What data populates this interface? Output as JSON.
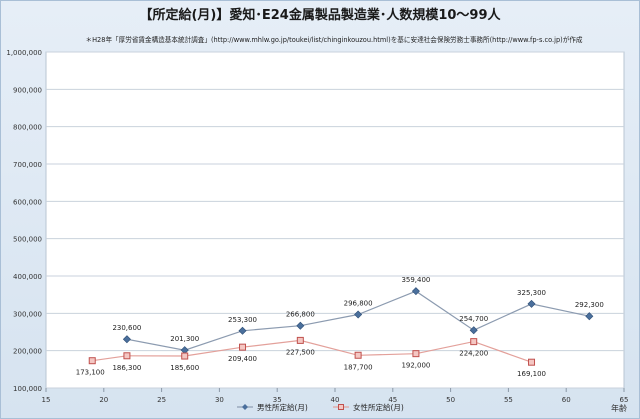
{
  "chart_data": {
    "type": "line",
    "title": "【所定給(月)】愛知･E24金属製品製造業･人数規模10～99人",
    "subtitle": "＊H28年「厚労省賃金構造基本統計調査」(http://www.mhlw.go.jp/toukei/list/chinginkouzou.html)を基に安達社会保険労務士事務所(http://www.fp-s.co.jp)が作成",
    "xlabel": "年齢",
    "ylabel": "",
    "xlim": [
      15,
      65
    ],
    "ylim": [
      100000,
      1000000
    ],
    "xticks": [
      15,
      20,
      25,
      30,
      35,
      40,
      45,
      50,
      55,
      60,
      65
    ],
    "yticks": [
      100000,
      200000,
      300000,
      400000,
      500000,
      600000,
      700000,
      800000,
      900000,
      1000000
    ],
    "xtick_labels": [
      "15",
      "20",
      "25",
      "30",
      "35",
      "40",
      "45",
      "50",
      "55",
      "60",
      "65"
    ],
    "ytick_labels": [
      "100,000",
      "200,000",
      "300,000",
      "400,000",
      "500,000",
      "600,000",
      "700,000",
      "800,000",
      "900,000",
      "1,000,000"
    ],
    "grid": true,
    "legend_position": "bottom",
    "series": [
      {
        "name": "男性所定給(月)",
        "color": "#4a6f9c",
        "marker": "diamond",
        "points": [
          {
            "x": 22,
            "y": 230600,
            "label": "230,600"
          },
          {
            "x": 27,
            "y": 201300,
            "label": "201,300"
          },
          {
            "x": 32,
            "y": 253300,
            "label": "253,300"
          },
          {
            "x": 37,
            "y": 266800,
            "label": "266,800"
          },
          {
            "x": 42,
            "y": 296800,
            "label": "296,800"
          },
          {
            "x": 47,
            "y": 359400,
            "label": "359,400"
          },
          {
            "x": 52,
            "y": 254700,
            "label": "254,700"
          },
          {
            "x": 57,
            "y": 325300,
            "label": "325,300"
          },
          {
            "x": 62,
            "y": 292300,
            "label": "292,300"
          }
        ]
      },
      {
        "name": "女性所定給(月)",
        "color": "#c0504d",
        "marker": "square",
        "points": [
          {
            "x": 19,
            "y": 173100,
            "label": "173,100"
          },
          {
            "x": 22,
            "y": 186300,
            "label": "186,300"
          },
          {
            "x": 27,
            "y": 185600,
            "label": "185,600"
          },
          {
            "x": 32,
            "y": 209400,
            "label": "209,400"
          },
          {
            "x": 37,
            "y": 227500,
            "label": "227,500"
          },
          {
            "x": 42,
            "y": 187700,
            "label": "187,700"
          },
          {
            "x": 47,
            "y": 192000,
            "label": "192,000"
          },
          {
            "x": 52,
            "y": 224200,
            "label": "224,200"
          },
          {
            "x": 57,
            "y": 169100,
            "label": "169,100"
          }
        ]
      }
    ]
  }
}
